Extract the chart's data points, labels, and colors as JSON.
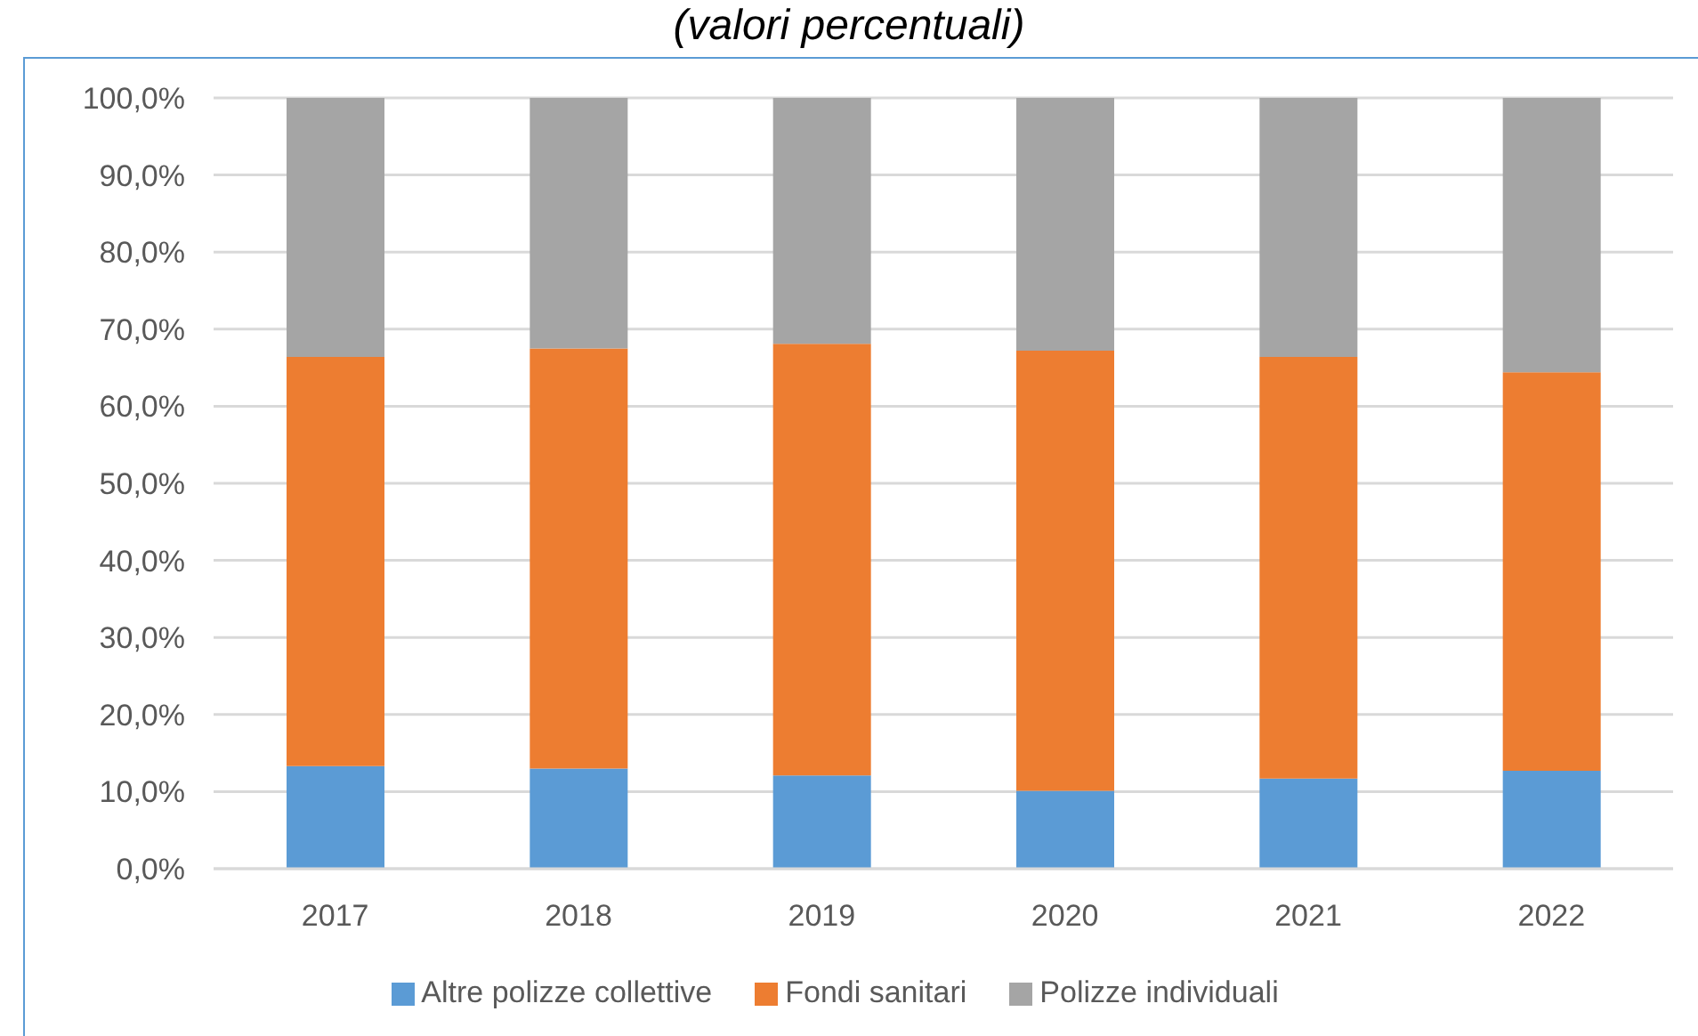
{
  "chart_data": {
    "type": "bar",
    "title": "(valori percentuali)",
    "categories": [
      "2017",
      "2018",
      "2019",
      "2020",
      "2021",
      "2022"
    ],
    "stacked": true,
    "series": [
      {
        "name": "Altre polizze collettive",
        "color": "#5b9bd5",
        "values": [
          13.3,
          13.0,
          12.1,
          10.1,
          11.7,
          12.7
        ]
      },
      {
        "name": "Fondi sanitari",
        "color": "#ed7d31",
        "values": [
          53.1,
          54.5,
          56.0,
          57.1,
          54.7,
          51.7
        ]
      },
      {
        "name": "Polizze individuali",
        "color": "#a5a5a5",
        "values": [
          33.6,
          32.5,
          31.9,
          32.8,
          33.6,
          35.6
        ]
      }
    ],
    "ylim": [
      0,
      100
    ],
    "yticks": [
      {
        "value": 0,
        "label": "0,0%"
      },
      {
        "value": 10,
        "label": "10,0%"
      },
      {
        "value": 20,
        "label": "20,0%"
      },
      {
        "value": 30,
        "label": "30,0%"
      },
      {
        "value": 40,
        "label": "40,0%"
      },
      {
        "value": 50,
        "label": "50,0%"
      },
      {
        "value": 60,
        "label": "60,0%"
      },
      {
        "value": 70,
        "label": "70,0%"
      },
      {
        "value": 80,
        "label": "80,0%"
      },
      {
        "value": 90,
        "label": "90,0%"
      },
      {
        "value": 100,
        "label": "100,0%"
      }
    ],
    "grid": "y",
    "legend": "bottom"
  }
}
